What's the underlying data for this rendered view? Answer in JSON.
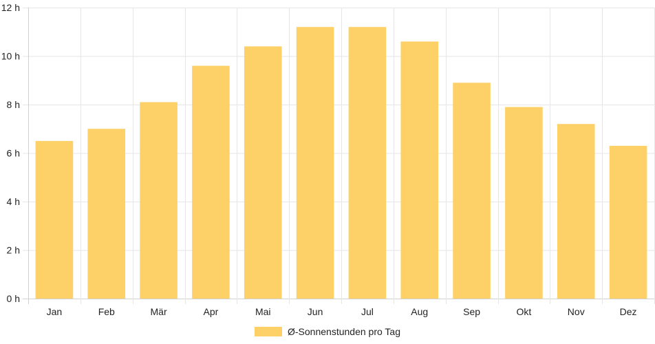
{
  "chart_data": {
    "type": "bar",
    "categories": [
      "Jan",
      "Feb",
      "Mär",
      "Apr",
      "Mai",
      "Jun",
      "Jul",
      "Aug",
      "Sep",
      "Okt",
      "Nov",
      "Dez"
    ],
    "series": [
      {
        "name": "Ø-Sonnenstunden pro Tag",
        "values": [
          6.5,
          7.0,
          8.1,
          9.6,
          10.4,
          11.2,
          11.2,
          10.6,
          8.9,
          7.9,
          7.2,
          6.3
        ]
      }
    ],
    "ylim": [
      0,
      12
    ],
    "yticks": [
      "0 h",
      "2 h",
      "4 h",
      "6 h",
      "8 h",
      "10 h",
      "12 h"
    ],
    "ytick_values": [
      0,
      2,
      4,
      6,
      8,
      10,
      12
    ],
    "grid": true,
    "legend_position": "bottom",
    "colors": {
      "bar": "#fdd068",
      "grid": "#e6e6e6",
      "axis": "#d0d0d0",
      "text": "#222222"
    }
  }
}
